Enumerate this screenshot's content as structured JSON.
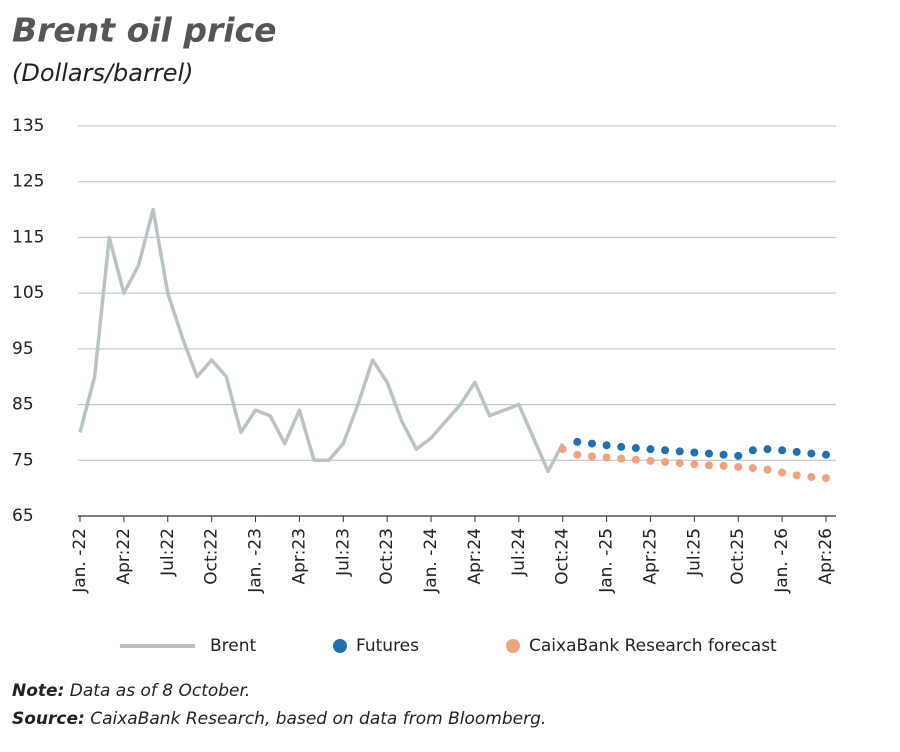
{
  "chart_data": {
    "type": "line",
    "title": "Brent oil price",
    "subtitle": "(Dollars/barrel)",
    "categories": [
      "Jan. -22",
      null,
      null,
      "Apr:22",
      null,
      null,
      "Jul:22",
      null,
      null,
      "Oct:22",
      null,
      null,
      "Jan. -23",
      null,
      null,
      "Apr:23",
      null,
      null,
      "Jul:23",
      null,
      null,
      "Oct:23",
      null,
      null,
      "Jan. -24",
      null,
      null,
      "Apr:24",
      null,
      null,
      "Jul:24",
      null,
      null,
      "Oct:24",
      null,
      null,
      "Jan. -25",
      null,
      null,
      "Apr:25",
      null,
      null,
      "Jul:25",
      null,
      null,
      "Oct:25",
      null,
      null,
      "Jan. -26",
      null,
      null,
      "Apr:26"
    ],
    "series": [
      {
        "name": "Brent",
        "color": "#b9c3c6",
        "style": "line",
        "values": [
          80,
          90,
          115,
          105,
          110,
          120,
          105,
          97,
          90,
          93,
          90,
          80,
          84,
          83,
          78,
          84,
          75,
          75,
          78,
          85,
          93,
          89,
          82,
          77,
          79,
          82,
          85,
          89,
          83,
          84,
          85,
          79,
          73,
          78,
          null,
          null,
          null,
          null,
          null,
          null,
          null,
          null,
          null,
          null,
          null,
          null,
          null,
          null,
          null,
          null,
          null,
          null
        ]
      },
      {
        "name": "Futures",
        "color": "#1f6fb4",
        "style": "dots",
        "values": [
          null,
          null,
          null,
          null,
          null,
          null,
          null,
          null,
          null,
          null,
          null,
          null,
          null,
          null,
          null,
          null,
          null,
          null,
          null,
          null,
          null,
          null,
          null,
          null,
          null,
          null,
          null,
          null,
          null,
          null,
          null,
          null,
          null,
          null,
          78.3,
          78,
          77.7,
          77.4,
          77.2,
          77,
          76.8,
          76.6,
          76.4,
          76.2,
          76,
          75.8,
          76.8,
          77,
          76.8,
          76.5,
          76.2,
          76
        ]
      },
      {
        "name": "CaixaBank Research forecast",
        "color": "#f0a27c",
        "style": "dots",
        "values": [
          null,
          null,
          null,
          null,
          null,
          null,
          null,
          null,
          null,
          null,
          null,
          null,
          null,
          null,
          null,
          null,
          null,
          null,
          null,
          null,
          null,
          null,
          null,
          null,
          null,
          null,
          null,
          null,
          null,
          null,
          null,
          null,
          null,
          77,
          76,
          75.7,
          75.5,
          75.3,
          75.1,
          74.9,
          74.7,
          74.5,
          74.3,
          74.1,
          74,
          73.8,
          73.6,
          73.3,
          72.8,
          72.3,
          72,
          71.8
        ]
      }
    ],
    "ylim": [
      65,
      135
    ],
    "yticks": [
      65,
      75,
      85,
      95,
      105,
      115,
      125,
      135
    ],
    "grid": true,
    "legend": "bottom",
    "note_label": "Note:",
    "note": "Data as of 8 October.",
    "source_label": "Source:",
    "source": "CaixaBank Research, based on data from Bloomberg."
  }
}
